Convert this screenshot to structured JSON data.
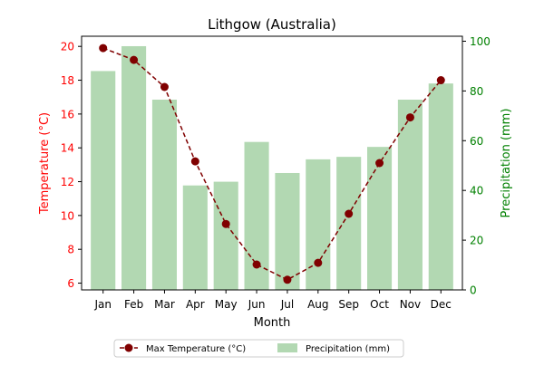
{
  "chart_data": {
    "type": "bar+line",
    "title": "Lithgow (Australia)",
    "xlabel": "Month",
    "categories": [
      "Jan",
      "Feb",
      "Mar",
      "Apr",
      "May",
      "Jun",
      "Jul",
      "Aug",
      "Sep",
      "Oct",
      "Nov",
      "Dec"
    ],
    "y_left": {
      "label": "Temperature (°C)",
      "ylim": [
        5.6,
        20.6
      ],
      "ticks": [
        6,
        8,
        10,
        12,
        14,
        16,
        18,
        20
      ],
      "color": "#ff0000"
    },
    "y_right": {
      "label": "Precipitation (mm)",
      "ylim": [
        0,
        102
      ],
      "ticks": [
        0,
        20,
        40,
        60,
        80,
        100
      ],
      "color": "#008000"
    },
    "series": [
      {
        "name": "Max Temperature (°C)",
        "type": "line",
        "axis": "left",
        "color": "#800000",
        "line_style": "dashed",
        "marker": "circle",
        "values": [
          19.9,
          19.2,
          17.6,
          13.2,
          9.5,
          7.1,
          6.2,
          7.2,
          10.1,
          13.1,
          15.8,
          18.0
        ]
      },
      {
        "name": "Precipitation (mm)",
        "type": "bar",
        "axis": "right",
        "color": "#b2d8b2",
        "values": [
          88,
          98,
          76.5,
          42,
          43.5,
          59.5,
          47,
          52.5,
          53.5,
          57.5,
          76.5,
          83
        ]
      }
    ],
    "grid": false,
    "legend": {
      "placement": "bottom-center",
      "columns": 2
    }
  }
}
